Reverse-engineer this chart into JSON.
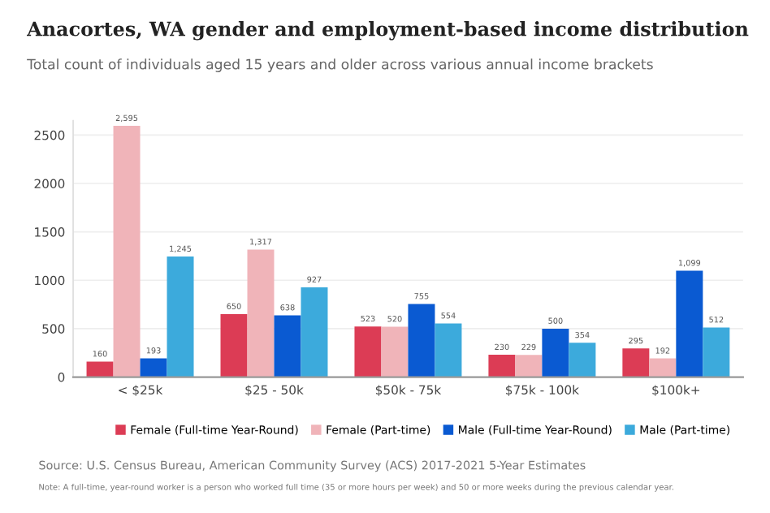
{
  "chart_data": {
    "type": "bar",
    "title": "Anacortes, WA gender and employment-based income distribution",
    "subtitle": "Total count of individuals aged 15 years and older across various annual income brackets",
    "categories": [
      "< $25k",
      "$25 - 50k",
      "$50k - 75k",
      "$75k - 100k",
      "$100k+"
    ],
    "series": [
      {
        "name": "Female (Full-time Year-Round)",
        "color": "#dc3c55",
        "values": [
          160,
          650,
          523,
          230,
          295
        ],
        "value_labels": [
          "160",
          "650",
          "523",
          "230",
          "295"
        ]
      },
      {
        "name": "Female (Part-time)",
        "color": "#f0b4b9",
        "values": [
          2595,
          1317,
          520,
          229,
          192
        ],
        "value_labels": [
          "2,595",
          "1,317",
          "520",
          "229",
          "192"
        ]
      },
      {
        "name": "Male (Full-time Year-Round)",
        "color": "#0a5ad2",
        "values": [
          193,
          638,
          755,
          500,
          1099
        ],
        "value_labels": [
          "193",
          "638",
          "755",
          "500",
          "1,099"
        ]
      },
      {
        "name": "Male (Part-time)",
        "color": "#3caadc",
        "values": [
          1245,
          927,
          554,
          354,
          512
        ],
        "value_labels": [
          "1,245",
          "927",
          "554",
          "354",
          "512"
        ]
      }
    ],
    "ylim": [
      0,
      2650
    ],
    "yticks": [
      0,
      500,
      1000,
      1500,
      2000,
      2500
    ],
    "grid": "y",
    "legend": "bottom",
    "annotations": [
      "Source: U.S. Census Bureau, American Community Survey (ACS) 2017-2021 5-Year Estimates",
      "Note: A full-time, year-round worker is a person who worked full time (35 or more hours per week) and 50 or more weeks during the previous calendar year."
    ]
  }
}
